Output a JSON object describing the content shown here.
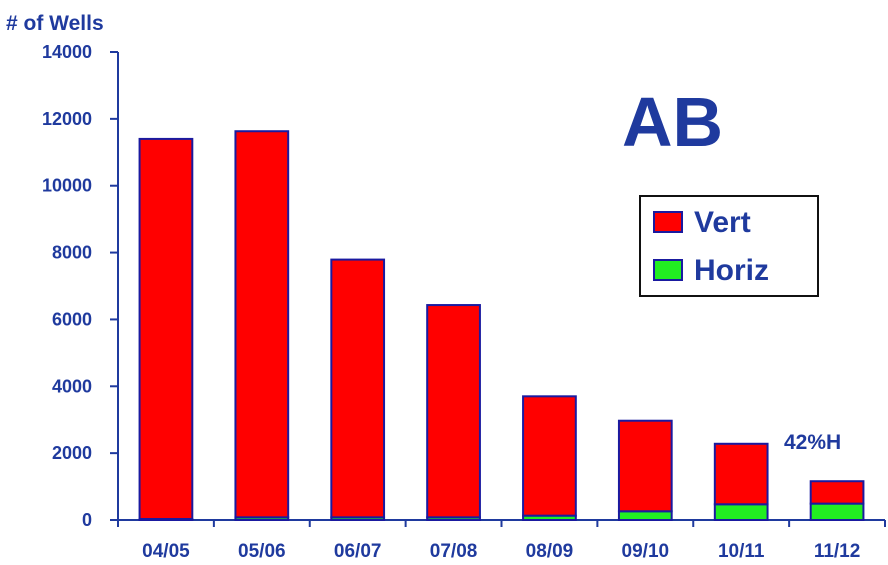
{
  "chart_data": {
    "type": "bar",
    "stacked": true,
    "title": "AB",
    "ylabel": "# of Wells",
    "xlabel": "",
    "categories": [
      "04/05",
      "05/06",
      "06/07",
      "07/08",
      "08/09",
      "09/10",
      "10/11",
      "11/12"
    ],
    "series": [
      {
        "name": "Horiz",
        "color": "#22ee22",
        "values": [
          30,
          80,
          80,
          80,
          130,
          260,
          470,
          490
        ]
      },
      {
        "name": "Vert",
        "color": "#ff0000",
        "values": [
          11370,
          11550,
          7710,
          6350,
          3570,
          2710,
          1810,
          670
        ]
      }
    ],
    "ylim": [
      0,
      14000
    ],
    "yticks": [
      0,
      2000,
      4000,
      6000,
      8000,
      10000,
      12000,
      14000
    ],
    "grid": false,
    "legend_position": "right",
    "annotation": "42%H",
    "colors": {
      "axis": "#1f3a9e",
      "bar_outline": "#1a1aa0",
      "text": "#1f3a9e"
    }
  }
}
